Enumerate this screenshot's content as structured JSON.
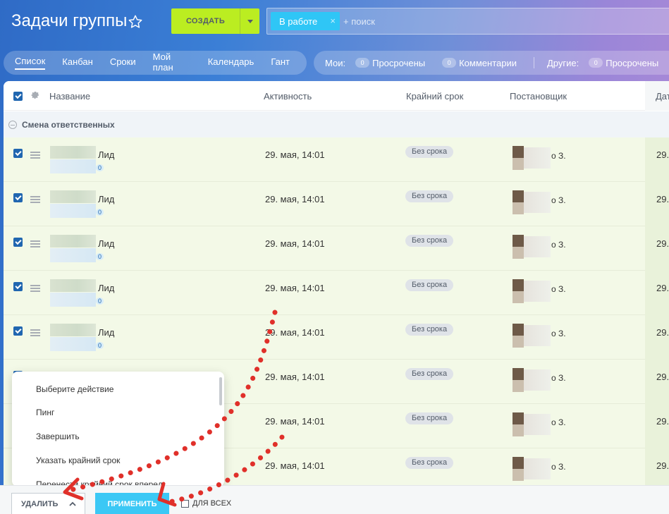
{
  "header": {
    "title": "Задачи группы",
    "create_label": "СОЗДАТЬ",
    "filter_chip": "В работе",
    "filter_chip_close": "×",
    "search_placeholder": "+ поиск"
  },
  "nav": {
    "tabs": [
      {
        "label": "Список",
        "active": true
      },
      {
        "label": "Канбан"
      },
      {
        "label": "Сроки"
      },
      {
        "label": "Мой план"
      },
      {
        "label": "Календарь"
      },
      {
        "label": "Гант"
      }
    ]
  },
  "counters": {
    "mine_label": "Мои:",
    "others_label": "Другие:",
    "mine": [
      {
        "count": "0",
        "label": "Просрочены"
      },
      {
        "count": "0",
        "label": "Комментарии"
      }
    ],
    "others": [
      {
        "count": "0",
        "label": "Просрочены"
      }
    ]
  },
  "table": {
    "columns": {
      "name": "Название",
      "activity": "Активность",
      "deadline": "Крайний срок",
      "creator": "Постановщик",
      "date": "Дат"
    },
    "group_label": "Смена ответственных",
    "rows": [
      {
        "name": "Лид",
        "comments": "0",
        "activity": "29. мая, 14:01",
        "deadline": "Без срока",
        "creator": "о З.",
        "date": "29."
      },
      {
        "name": "Лид",
        "comments": "0",
        "activity": "29. мая, 14:01",
        "deadline": "Без срока",
        "creator": "о З.",
        "date": "29."
      },
      {
        "name": "Лид",
        "comments": "0",
        "activity": "29. мая, 14:01",
        "deadline": "Без срока",
        "creator": "о З.",
        "date": "29."
      },
      {
        "name": "Лид",
        "comments": "0",
        "activity": "29. мая, 14:01",
        "deadline": "Без срока",
        "creator": "о З.",
        "date": "29."
      },
      {
        "name": "Лид",
        "comments": "0",
        "activity": "29. мая, 14:01",
        "deadline": "Без срока",
        "creator": "о З.",
        "date": "29."
      },
      {
        "name": "",
        "comments": "",
        "activity": "29. мая, 14:01",
        "deadline": "Без срока",
        "creator": "о З.",
        "date": "29."
      },
      {
        "name": "",
        "comments": "",
        "activity": "29. мая, 14:01",
        "deadline": "Без срока",
        "creator": "о З.",
        "date": "29."
      },
      {
        "name": "",
        "comments": "",
        "activity": "29. мая, 14:01",
        "deadline": "Без срока",
        "creator": "о З.",
        "date": "29."
      }
    ]
  },
  "action_menu": {
    "items": [
      "Выберите действие",
      "Пинг",
      "Завершить",
      "Указать крайний срок",
      "Перенести крайний срок вперед"
    ]
  },
  "bottom_panel": {
    "action_select_value": "УДАЛИТЬ",
    "apply_label": "ПРИМЕНИТЬ",
    "for_all_label": "ДЛЯ ВСЕХ"
  },
  "colors": {
    "accent_create": "#bbed21",
    "accent_apply": "#3bc8f5",
    "annotation_red": "#e0302a"
  }
}
